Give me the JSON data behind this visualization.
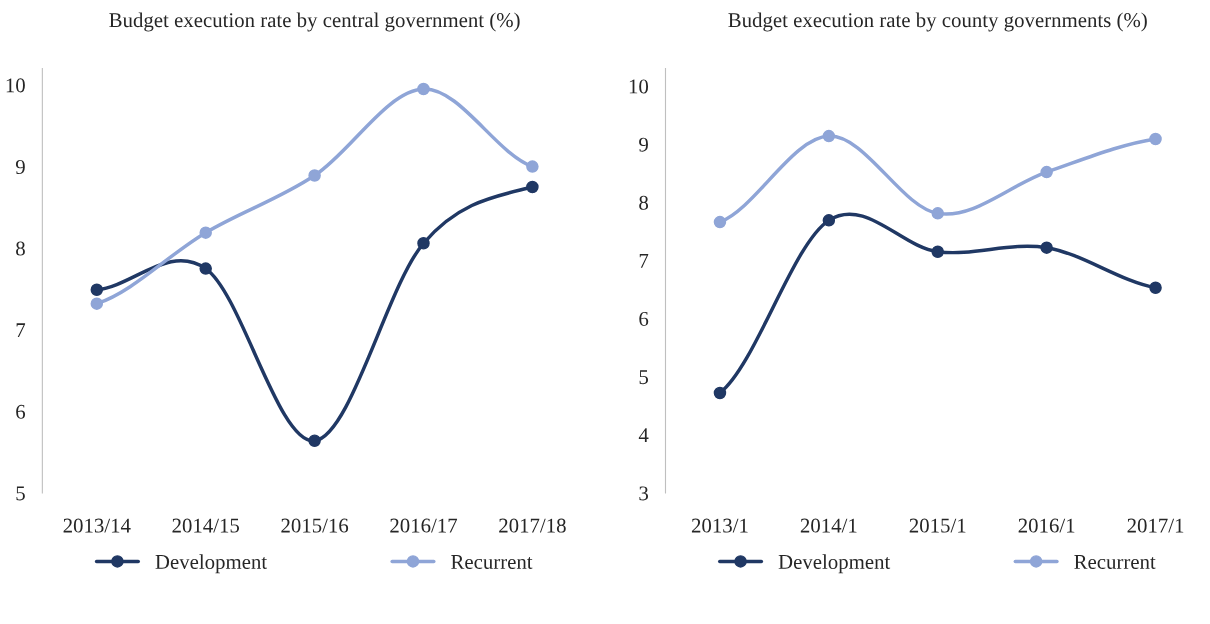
{
  "chart_data": [
    {
      "type": "line",
      "title": "Budget execution rate by central government (%)",
      "categories": [
        "2013/14",
        "2014/15",
        "2015/16",
        "2016/17",
        "2017/18"
      ],
      "series": [
        {
          "name": "Development",
          "color": "#203864",
          "values": [
            7.49,
            7.75,
            5.64,
            8.06,
            8.75
          ]
        },
        {
          "name": "Recurrent",
          "color": "#8fa5d7",
          "values": [
            7.32,
            8.19,
            8.89,
            9.95,
            9.0
          ]
        }
      ],
      "ylim": [
        5,
        10.2
      ],
      "yticks": [
        5,
        6,
        7,
        8,
        9,
        10
      ],
      "marker": "circle",
      "line_style": "solid",
      "grid": false,
      "legend": "bottom"
    },
    {
      "type": "line",
      "title": "Budget execution rate by county governments (%)",
      "categories": [
        "2013/1",
        "2014/1",
        "2015/1",
        "2016/1",
        "2017/1"
      ],
      "series": [
        {
          "name": "Development",
          "color": "#203864",
          "values": [
            4.72,
            7.69,
            7.15,
            7.22,
            6.53
          ]
        },
        {
          "name": "Recurrent",
          "color": "#8fa5d7",
          "values": [
            7.66,
            9.14,
            7.81,
            8.52,
            9.09
          ]
        }
      ],
      "ylim": [
        3,
        10.3
      ],
      "yticks": [
        3,
        4,
        5,
        6,
        7,
        8,
        9,
        10
      ],
      "marker": "circle",
      "line_style": "solid",
      "grid": false,
      "legend": "bottom"
    }
  ]
}
